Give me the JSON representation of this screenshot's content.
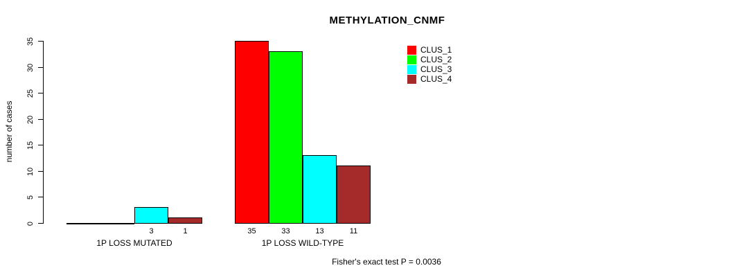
{
  "chart_data": {
    "type": "bar",
    "title": "METHYLATION_CNMF",
    "ylabel": "number of cases",
    "xlabel": "",
    "ylim": [
      0,
      35
    ],
    "yticks": [
      0,
      5,
      10,
      15,
      20,
      25,
      30,
      35
    ],
    "categories": [
      "1P LOSS MUTATED",
      "1P LOSS WILD-TYPE"
    ],
    "series": [
      {
        "name": "CLUS_1",
        "color": "#ff0000",
        "values": [
          0,
          35
        ]
      },
      {
        "name": "CLUS_2",
        "color": "#00ff00",
        "values": [
          0,
          33
        ]
      },
      {
        "name": "CLUS_3",
        "color": "#00ffff",
        "values": [
          3,
          13
        ]
      },
      {
        "name": "CLUS_4",
        "color": "#a52a2a",
        "values": [
          1,
          11
        ]
      }
    ],
    "bar_value_labels": [
      [
        "0",
        "0",
        "3",
        "1"
      ],
      [
        "35",
        "33",
        "13",
        "11"
      ]
    ],
    "legend_position": "top-right",
    "grid": false,
    "annotation": "Fisher's exact test P = 0.0036"
  }
}
